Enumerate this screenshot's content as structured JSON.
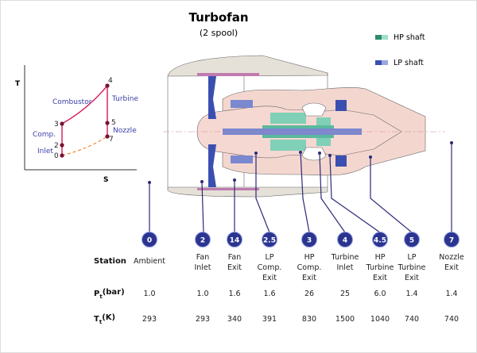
{
  "title": "Turbofan",
  "subtitle": "(2 spool)",
  "legend": [
    {
      "label": "HP shaft",
      "color": "#2e8a6e",
      "color2": "#9fe0cc"
    },
    {
      "label": "LP shaft",
      "color": "#3a4fb0",
      "color2": "#9aa8e0"
    }
  ],
  "ts_diagram": {
    "y_axis": "T",
    "x_axis": "S",
    "points": [
      "0",
      "2",
      "3",
      "4",
      "5",
      "7"
    ],
    "process_labels": {
      "inlet": "Inlet",
      "comp": "Comp.",
      "combustor": "Combustor",
      "turbine": "Turbine",
      "nozzle": "Nozzle"
    },
    "colors": {
      "process": "#d6185a",
      "dashed": "#f0913a",
      "points": "#7a1030",
      "labels": "#3b3ea6"
    }
  },
  "table": {
    "row_labels": {
      "station": "Station",
      "pt": "P",
      "pt_sub": "t",
      "pt_unit": "(bar)",
      "tt": "T",
      "tt_sub": "t",
      "tt_unit": "(K)"
    },
    "stations": [
      {
        "id": "0",
        "name": [
          "Ambient"
        ],
        "pt": "1.0",
        "tt": "293"
      },
      {
        "id": "2",
        "name": [
          "Fan",
          "Inlet"
        ],
        "pt": "1.0",
        "tt": "293"
      },
      {
        "id": "14",
        "name": [
          "Fan",
          "Exit"
        ],
        "pt": "1.6",
        "tt": "340"
      },
      {
        "id": "2.5",
        "name": [
          "LP",
          "Comp.",
          "Exit"
        ],
        "pt": "1.6",
        "tt": "391"
      },
      {
        "id": "3",
        "name": [
          "HP",
          "Comp.",
          "Exit"
        ],
        "pt": "26",
        "tt": "830"
      },
      {
        "id": "4",
        "name": [
          "Turbine",
          "Inlet"
        ],
        "pt": "25",
        "tt": "1500"
      },
      {
        "id": "4.5",
        "name": [
          "HP",
          "Turbine",
          "Exit"
        ],
        "pt": "6.0",
        "tt": "1040"
      },
      {
        "id": "5",
        "name": [
          "LP",
          "Turbine",
          "Exit"
        ],
        "pt": "1.4",
        "tt": "740"
      },
      {
        "id": "7",
        "name": [
          "Nozzle",
          "Exit"
        ],
        "pt": "1.4",
        "tt": "740"
      }
    ],
    "badge_color": "#2b3590"
  }
}
